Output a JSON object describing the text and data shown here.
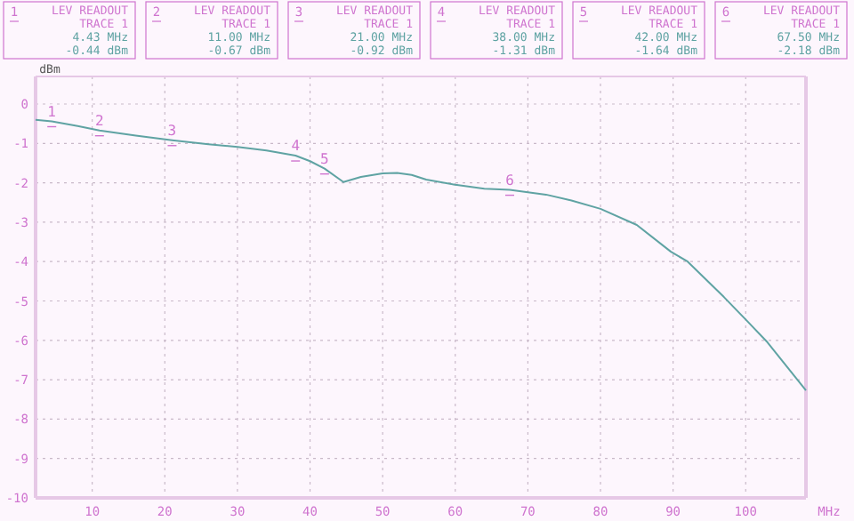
{
  "chart_data": {
    "type": "line",
    "xlabel": "MHz",
    "ylabel": "dBm",
    "x": [
      2.2,
      4.43,
      8,
      11,
      16,
      21,
      26,
      30,
      34,
      38,
      40,
      42,
      44.6,
      47,
      50,
      52,
      54,
      56,
      60,
      64,
      67.5,
      72.5,
      76,
      80,
      85,
      89.7,
      92,
      97,
      100,
      103,
      108.3
    ],
    "series": [
      {
        "color": "#5fa3a3",
        "values": [
          -0.4,
          -0.44,
          -0.56,
          -0.67,
          -0.8,
          -0.92,
          -1.02,
          -1.09,
          -1.18,
          -1.31,
          -1.45,
          -1.64,
          -1.98,
          -1.85,
          -1.76,
          -1.75,
          -1.8,
          -1.92,
          -2.05,
          -2.15,
          -2.18,
          -2.3,
          -2.45,
          -2.66,
          -3.07,
          -3.75,
          -4.0,
          -4.9,
          -5.47,
          -6.05,
          -7.27
        ]
      }
    ],
    "xlim": [
      2.2,
      108.3
    ],
    "xticks": [
      10,
      20,
      30,
      40,
      50,
      60,
      70,
      80,
      90,
      100
    ],
    "ylim": [
      -10,
      0.7
    ],
    "yticks": [
      0,
      -1,
      -2,
      -3,
      -4,
      -5,
      -6,
      -7,
      -8,
      -9,
      -10
    ],
    "grid": true,
    "marker": "none",
    "line_style": "solid",
    "annotations": [
      {
        "text": "1",
        "x": 4.43,
        "y": -0.44
      },
      {
        "text": "2",
        "x": 11,
        "y": -0.67
      },
      {
        "text": "3",
        "x": 21,
        "y": -0.92
      },
      {
        "text": "4",
        "x": 38,
        "y": -1.31
      },
      {
        "text": "5",
        "x": 42,
        "y": -1.64
      },
      {
        "text": "6",
        "x": 67.5,
        "y": -2.18
      },
      "1\nLEV READOUT\nTRACE 1\n4.43 MHz\n-0.44 dBm",
      "2\nLEV READOUT\nTRACE 1\n11.00 MHz\n-0.67 dBm",
      "3\nLEV READOUT\nTRACE 1\n21.00 MHz\n-0.92 dBm",
      "4\nLEV READOUT\nTRACE 1\n38.00 MHz\n-1.31 dBm",
      "5\nLEV READOUT\nTRACE 1\n42.00 MHz\n-1.64 dBm",
      "6\nLEV READOUT\nTRACE 1\n67.50 MHz\n-2.18 dBm"
    ]
  }
}
